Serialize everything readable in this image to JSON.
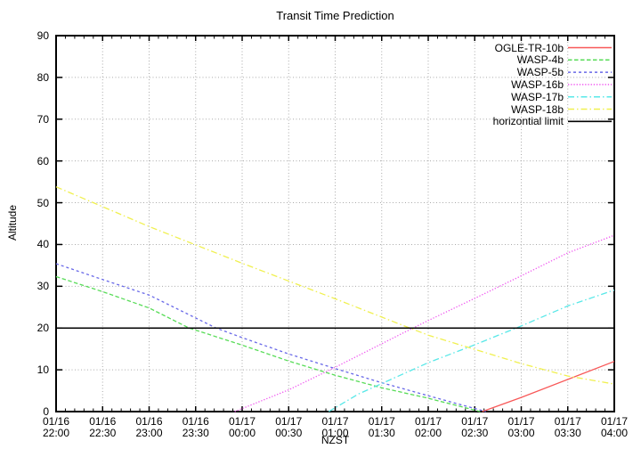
{
  "chart": {
    "title": "Transit Time Prediction",
    "xlabel": "NZST",
    "ylabel": "Altitude"
  },
  "chart_data": {
    "type": "line",
    "title": "Transit Time Prediction",
    "xlabel": "NZST",
    "ylabel": "Altitude",
    "ylim": [
      0,
      90
    ],
    "y_ticks": [
      0,
      10,
      20,
      30,
      40,
      50,
      60,
      70,
      80,
      90
    ],
    "x_ticks": [
      {
        "d": "01/16",
        "t": "22:00"
      },
      {
        "d": "01/16",
        "t": "22:30"
      },
      {
        "d": "01/16",
        "t": "23:00"
      },
      {
        "d": "01/16",
        "t": "23:30"
      },
      {
        "d": "01/17",
        "t": "00:00"
      },
      {
        "d": "01/17",
        "t": "00:30"
      },
      {
        "d": "01/17",
        "t": "01:00"
      },
      {
        "d": "01/17",
        "t": "01:30"
      },
      {
        "d": "01/17",
        "t": "02:00"
      },
      {
        "d": "01/17",
        "t": "02:30"
      },
      {
        "d": "01/17",
        "t": "03:00"
      },
      {
        "d": "01/17",
        "t": "03:30"
      },
      {
        "d": "01/17",
        "t": "04:00"
      }
    ],
    "x_range_hours_from_2200": [
      0,
      6
    ],
    "grid": true,
    "legend_position": "top-right-inside",
    "colors": {
      "grid": "#aaaaaa",
      "axis": "#000000"
    },
    "series": [
      {
        "name": "OGLE-TR-10b",
        "color": "#f85858",
        "dash": "",
        "width": 1.3,
        "points": [
          [
            4.58,
            0
          ],
          [
            5.0,
            3.4
          ],
          [
            5.5,
            7.7
          ],
          [
            6.0,
            12.0
          ]
        ]
      },
      {
        "name": "WASP-4b",
        "color": "#58dc58",
        "dash": "4.5 2.5",
        "width": 1.3,
        "points": [
          [
            0,
            32.3
          ],
          [
            0.5,
            28.7
          ],
          [
            1.0,
            24.8
          ],
          [
            1.43,
            20.0
          ],
          [
            2.0,
            15.9
          ],
          [
            2.5,
            12.1
          ],
          [
            3.0,
            8.7
          ],
          [
            3.5,
            5.7
          ],
          [
            4.0,
            3.2
          ],
          [
            4.56,
            0
          ]
        ]
      },
      {
        "name": "WASP-5b",
        "color": "#6868e8",
        "dash": "3 3",
        "width": 1.3,
        "points": [
          [
            0,
            35.4
          ],
          [
            0.5,
            31.6
          ],
          [
            1.0,
            27.9
          ],
          [
            1.72,
            20.0
          ],
          [
            2.0,
            17.7
          ],
          [
            2.5,
            13.8
          ],
          [
            3.0,
            10.3
          ],
          [
            3.5,
            6.9
          ],
          [
            4.0,
            3.8
          ],
          [
            4.62,
            0
          ]
        ]
      },
      {
        "name": "WASP-16b",
        "color": "#f058f0",
        "dash": "1.3 1.9",
        "width": 1.3,
        "points": [
          [
            1.92,
            0
          ],
          [
            2.5,
            5.2
          ],
          [
            3.0,
            10.6
          ],
          [
            3.72,
            18.7
          ],
          [
            4.0,
            21.8
          ],
          [
            4.5,
            27.1
          ],
          [
            5.0,
            32.5
          ],
          [
            5.5,
            38.0
          ],
          [
            6.0,
            42.2
          ]
        ]
      },
      {
        "name": "WASP-17b",
        "color": "#58e8e8",
        "dash": "7 3 1.5 3",
        "width": 1.3,
        "points": [
          [
            2.93,
            0
          ],
          [
            3.25,
            4.2
          ],
          [
            4.0,
            11.7
          ],
          [
            4.5,
            16.0
          ],
          [
            5.0,
            20.5
          ],
          [
            5.5,
            25.3
          ],
          [
            6.0,
            29.1
          ]
        ]
      },
      {
        "name": "WASP-18b",
        "color": "#f0f050",
        "dash": "7 3 1.5 3",
        "width": 1.3,
        "points": [
          [
            0,
            53.8
          ],
          [
            1.0,
            44.3
          ],
          [
            2.0,
            35.5
          ],
          [
            3.0,
            27.0
          ],
          [
            3.72,
            20.7
          ],
          [
            4.0,
            18.3
          ],
          [
            5.0,
            11.5
          ],
          [
            5.5,
            8.5
          ],
          [
            6.0,
            6.6
          ]
        ]
      },
      {
        "name": "horizontial limit",
        "color": "#000000",
        "dash": "",
        "width": 1.5,
        "points": [
          [
            0,
            20
          ],
          [
            6,
            20
          ]
        ]
      }
    ]
  }
}
